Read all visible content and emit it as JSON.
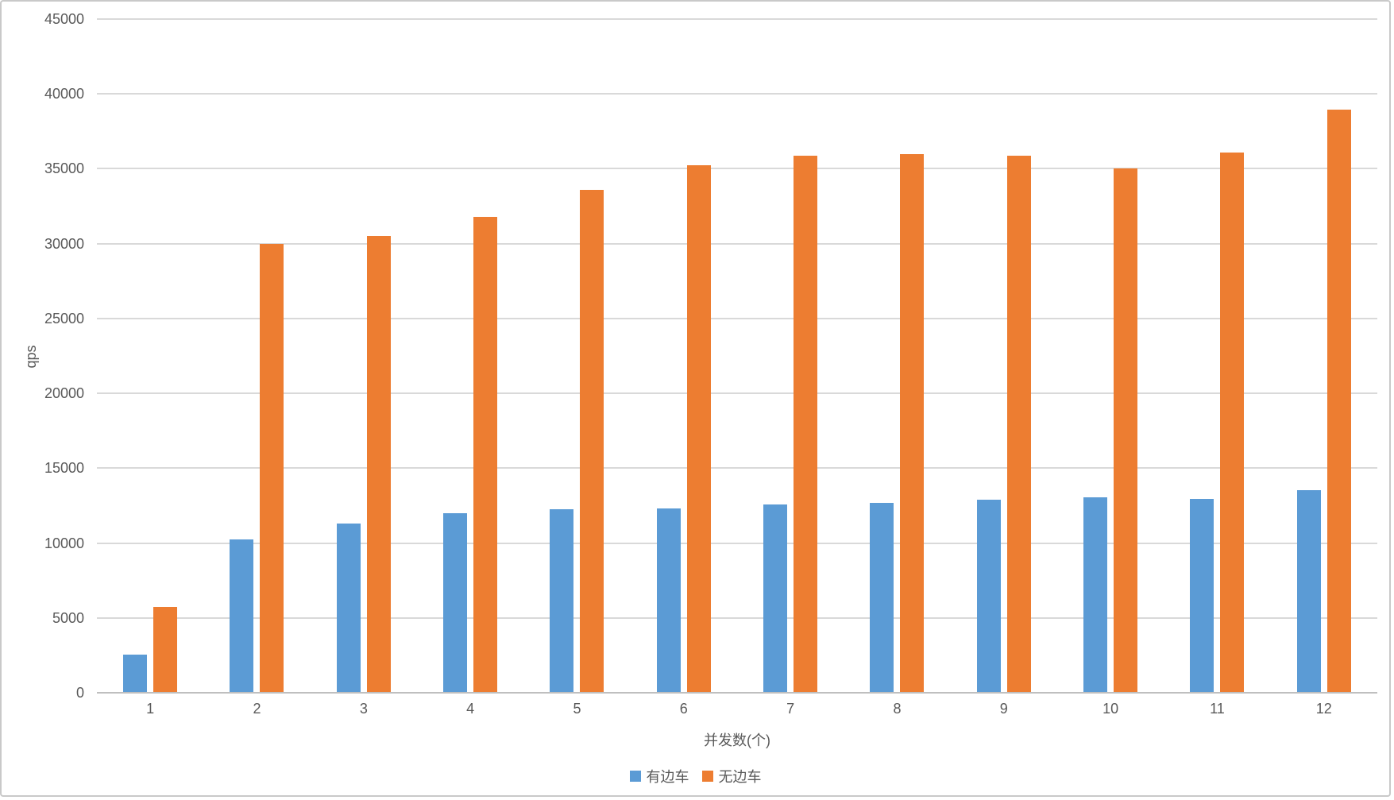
{
  "chart_data": {
    "type": "bar",
    "title": "",
    "xlabel": "并发数(个)",
    "ylabel": "qps",
    "ylim": [
      0,
      45000
    ],
    "yticks": [
      0,
      5000,
      10000,
      15000,
      20000,
      25000,
      30000,
      35000,
      40000,
      45000
    ],
    "grid": true,
    "legend_position": "bottom",
    "categories": [
      "1",
      "2",
      "3",
      "4",
      "5",
      "6",
      "7",
      "8",
      "9",
      "10",
      "11",
      "12"
    ],
    "series": [
      {
        "name": "有边车",
        "color": "#5B9BD5",
        "values": [
          2550,
          10250,
          11300,
          12000,
          12250,
          12300,
          12600,
          12700,
          12900,
          13050,
          12950,
          13550
        ]
      },
      {
        "name": "无边车",
        "color": "#ED7D31",
        "values": [
          5750,
          30000,
          30500,
          31800,
          33600,
          35250,
          35850,
          36000,
          35850,
          35000,
          36100,
          38950
        ]
      }
    ],
    "colors": {
      "gridline": "#d9d9d9",
      "axis_line": "#bfbfbf",
      "tick_text": "#595959"
    }
  }
}
